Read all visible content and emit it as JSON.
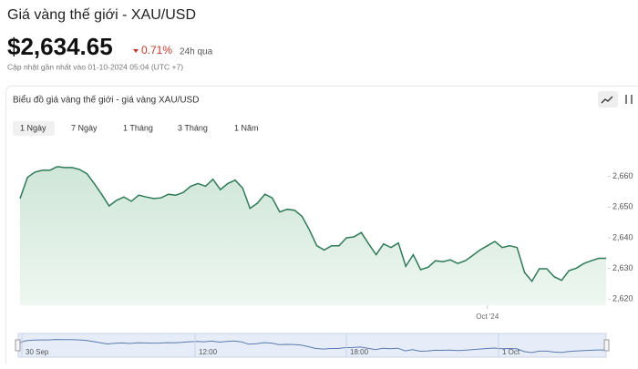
{
  "header": {
    "title": "Giá vàng thế giới - XAU/USD",
    "price": "$2,634.65",
    "change": "0.71%",
    "period": "24h qua",
    "updated": "Cập nhật gần nhất vào 01-10-2024 05:04 (UTC +7)"
  },
  "chart_data": {
    "type": "area",
    "title": "Biểu đồ giá vàng thế giới - giá vàng XAU/USD",
    "ranges": [
      "1 Ngày",
      "7 Ngày",
      "1 Tháng",
      "3 Tháng",
      "1 Năm"
    ],
    "active_range": 0,
    "categories": [
      null,
      null,
      null,
      null,
      null,
      null,
      null,
      null,
      null,
      null,
      null,
      null,
      null,
      null,
      null,
      null,
      null,
      null,
      null,
      null,
      null,
      null,
      null,
      null,
      null,
      null,
      null,
      null,
      null,
      null,
      null,
      null,
      null,
      null,
      null,
      null,
      null,
      null,
      null,
      null,
      null,
      null,
      null,
      null,
      null,
      null,
      null,
      null,
      null,
      null,
      null,
      null,
      null,
      null,
      null,
      null,
      null,
      null,
      null,
      null,
      null,
      null,
      null,
      "Oct '24",
      null,
      null,
      null,
      null,
      null,
      null,
      null,
      null,
      null,
      null,
      null,
      null,
      null,
      null,
      null,
      null
    ],
    "values": [
      2652.8,
      2659.7,
      2661.4,
      2662,
      2662,
      2663.2,
      2662.9,
      2662.9,
      2662.3,
      2660.9,
      2657.7,
      2654.2,
      2650.4,
      2652.2,
      2653.3,
      2651.9,
      2653.9,
      2653.3,
      2652.8,
      2653,
      2654.2,
      2653.9,
      2654.8,
      2656.8,
      2657.7,
      2656.8,
      2659.1,
      2655.7,
      2657.7,
      2658.8,
      2656.2,
      2649.6,
      2651.3,
      2654.2,
      2653,
      2648.4,
      2649.3,
      2649,
      2647,
      2642.6,
      2637.4,
      2636,
      2637.4,
      2637.4,
      2640,
      2640.3,
      2641.7,
      2638,
      2634.5,
      2638,
      2636.8,
      2638.3,
      2630.7,
      2634.5,
      2629.6,
      2630.4,
      2632.5,
      2632.2,
      2632.8,
      2631.6,
      2632.5,
      2634.2,
      2636,
      2637.4,
      2638.8,
      2636.8,
      2637.4,
      2636.8,
      2628.7,
      2625.8,
      2629.9,
      2629.9,
      2627.3,
      2626.1,
      2629.3,
      2630.1,
      2631.6,
      2632.5,
      2633.3,
      2633.3
    ],
    "color": "#2f7a57",
    "ylim": [
      2618,
      2670
    ],
    "yticks": [
      {
        "value": 2620,
        "label": "2,620"
      },
      {
        "value": 2630,
        "label": "2,630"
      },
      {
        "value": 2640,
        "label": "2,640"
      },
      {
        "value": 2650,
        "label": "2,650"
      },
      {
        "value": 2660,
        "label": "2,660"
      }
    ],
    "navigator_labels": [
      "30 Sep",
      "12:00",
      "18:00",
      "1 Oct"
    ]
  }
}
